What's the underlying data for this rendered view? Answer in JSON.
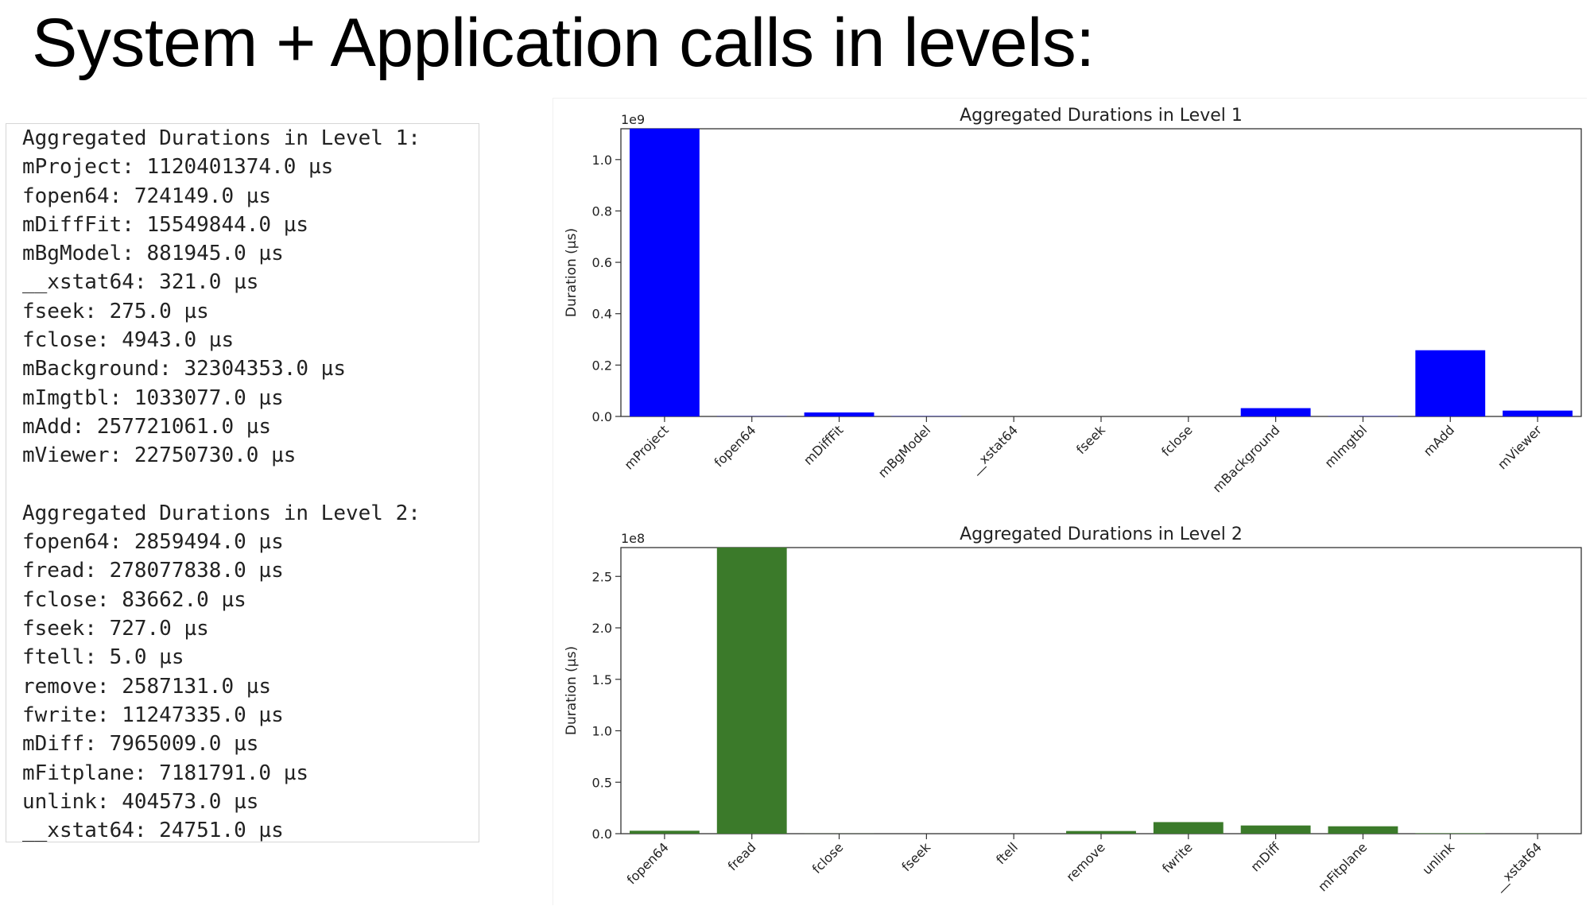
{
  "slide": {
    "title": "System + Application calls in levels:"
  },
  "log": {
    "level1": {
      "header": "Aggregated Durations in Level 1:",
      "lines": [
        "mProject: 1120401374.0 µs",
        "fopen64: 724149.0 µs",
        "mDiffFit: 15549844.0 µs",
        "mBgModel: 881945.0 µs",
        "__xstat64: 321.0 µs",
        "fseek: 275.0 µs",
        "fclose: 4943.0 µs",
        "mBackground: 32304353.0 µs",
        "mImgtbl: 1033077.0 µs",
        "mAdd: 257721061.0 µs",
        "mViewer: 22750730.0 µs"
      ]
    },
    "level2": {
      "header": "Aggregated Durations in Level 2:",
      "lines": [
        "fopen64: 2859494.0 µs",
        "fread: 278077838.0 µs",
        "fclose: 83662.0 µs",
        "fseek: 727.0 µs",
        "ftell: 5.0 µs",
        "remove: 2587131.0 µs",
        "fwrite: 11247335.0 µs",
        "mDiff: 7965009.0 µs",
        "mFitplane: 7181791.0 µs",
        "unlink: 404573.0 µs",
        "__xstat64: 24751.0 µs"
      ]
    }
  },
  "chart_data": [
    {
      "type": "bar",
      "title": "Aggregated Durations in Level 1",
      "xlabel": "",
      "ylabel": "Duration (µs)",
      "scale_label": "1e9",
      "scale": 1000000000,
      "ylim": [
        0,
        1.12
      ],
      "yticks": [
        0.0,
        0.2,
        0.4,
        0.6,
        0.8,
        1.0
      ],
      "ytick_labels": [
        "0.0",
        "0.2",
        "0.4",
        "0.6",
        "0.8",
        "1.0"
      ],
      "categories": [
        "mProject",
        "fopen64",
        "mDiffFit",
        "mBgModel",
        "__xstat64",
        "fseek",
        "fclose",
        "mBackground",
        "mImgtbl",
        "mAdd",
        "mViewer"
      ],
      "values": [
        1120401374.0,
        724149.0,
        15549844.0,
        881945.0,
        321.0,
        275.0,
        4943.0,
        32304353.0,
        1033077.0,
        257721061.0,
        22750730.0
      ],
      "color": "#0000ff",
      "grid": false,
      "legend": "none"
    },
    {
      "type": "bar",
      "title": "Aggregated Durations in Level 2",
      "xlabel": "",
      "ylabel": "Duration (µs)",
      "scale_label": "1e8",
      "scale": 100000000,
      "ylim": [
        0,
        2.78
      ],
      "yticks": [
        0.0,
        0.5,
        1.0,
        1.5,
        2.0,
        2.5
      ],
      "ytick_labels": [
        "0.0",
        "0.5",
        "1.0",
        "1.5",
        "2.0",
        "2.5"
      ],
      "categories": [
        "fopen64",
        "fread",
        "fclose",
        "fseek",
        "ftell",
        "remove",
        "fwrite",
        "mDiff",
        "mFitplane",
        "unlink",
        "__xstat64"
      ],
      "values": [
        2859494.0,
        278077838.0,
        83662.0,
        727.0,
        5.0,
        2587131.0,
        11247335.0,
        7965009.0,
        7181791.0,
        404573.0,
        24751.0
      ],
      "color": "#3b7a2a",
      "grid": false,
      "legend": "none"
    }
  ]
}
